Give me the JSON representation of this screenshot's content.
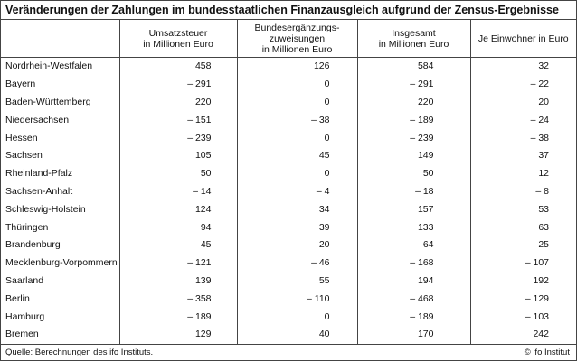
{
  "chart_data": {
    "type": "table",
    "title": "Veränderungen der Zahlungen im bundesstaatlichen Finanzausgleich aufgrund der Zensus-Ergebnisse",
    "columns": [
      {
        "line1": "Umsatzsteuer",
        "line2": "in Millionen Euro",
        "line3": ""
      },
      {
        "line1": "Bundesergänzungs-",
        "line2": "zuweisungen",
        "line3": "in Millionen Euro"
      },
      {
        "line1": "Insgesamt",
        "line2": "in Millionen Euro",
        "line3": ""
      },
      {
        "line1": "Je Einwohner in Euro",
        "line2": "",
        "line3": ""
      }
    ],
    "rows": [
      {
        "name": "Nordrhein-Westfalen",
        "v": [
          "458",
          "126",
          "584",
          "32"
        ]
      },
      {
        "name": "Bayern",
        "v": [
          "– 291",
          "0",
          "– 291",
          "– 22"
        ]
      },
      {
        "name": "Baden-Württemberg",
        "v": [
          "220",
          "0",
          "220",
          "20"
        ]
      },
      {
        "name": "Niedersachsen",
        "v": [
          "– 151",
          "– 38",
          "– 189",
          "– 24"
        ]
      },
      {
        "name": "Hessen",
        "v": [
          "– 239",
          "0",
          "– 239",
          "– 38"
        ]
      },
      {
        "name": "Sachsen",
        "v": [
          "105",
          "45",
          "149",
          "37"
        ]
      },
      {
        "name": "Rheinland-Pfalz",
        "v": [
          "50",
          "0",
          "50",
          "12"
        ]
      },
      {
        "name": "Sachsen-Anhalt",
        "v": [
          "– 14",
          "– 4",
          "– 18",
          "– 8"
        ]
      },
      {
        "name": "Schleswig-Holstein",
        "v": [
          "124",
          "34",
          "157",
          "53"
        ]
      },
      {
        "name": "Thüringen",
        "v": [
          "94",
          "39",
          "133",
          "63"
        ]
      },
      {
        "name": "Brandenburg",
        "v": [
          "45",
          "20",
          "64",
          "25"
        ]
      },
      {
        "name": "Mecklenburg-Vorpommern",
        "v": [
          "– 121",
          "– 46",
          "– 168",
          "– 107"
        ]
      },
      {
        "name": "Saarland",
        "v": [
          "139",
          "55",
          "194",
          "192"
        ]
      },
      {
        "name": "Berlin",
        "v": [
          "– 358",
          "– 110",
          "– 468",
          "– 129"
        ]
      },
      {
        "name": "Hamburg",
        "v": [
          "– 189",
          "0",
          "– 189",
          "– 103"
        ]
      },
      {
        "name": "Bremen",
        "v": [
          "129",
          "40",
          "170",
          "242"
        ]
      }
    ]
  },
  "footer": {
    "source": "Quelle: Berechnungen des ifo Instituts.",
    "copyright": "© ifo Institut"
  }
}
